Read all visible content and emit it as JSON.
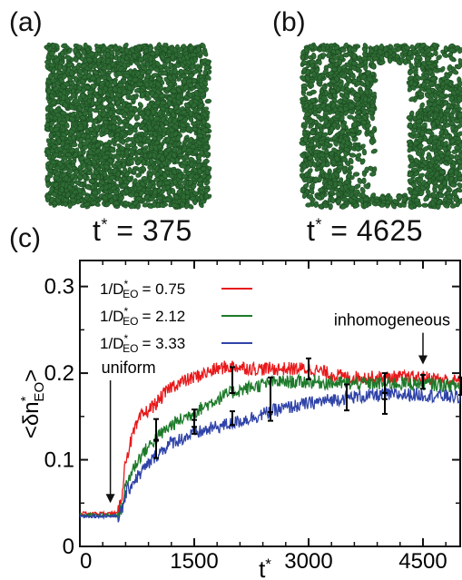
{
  "panels": {
    "a": {
      "label": "(a)",
      "time_prefix": "t",
      "time_value": "= 375"
    },
    "b": {
      "label": "(b)",
      "time_prefix": "t",
      "time_value": "= 4625"
    },
    "c": {
      "label": "(c)"
    }
  },
  "colors": {
    "particle": "#2e6b34",
    "particle_edge": "#1b4a20"
  },
  "chart_data": {
    "type": "line",
    "xlabel": "t*",
    "ylabel": "<δn*EO>",
    "xlim": [
      0,
      5000
    ],
    "ylim": [
      0,
      0.33
    ],
    "xticks": [
      0,
      1500,
      3000,
      4500
    ],
    "yticks": [
      0,
      0.1,
      0.2,
      0.3
    ],
    "xtick_labels": [
      "0",
      "1500",
      "3000",
      "4500"
    ],
    "ytick_labels": [
      "0",
      "0.1",
      "0.2",
      "0.3"
    ],
    "grid": false,
    "legend_position": "top-left",
    "legend_prefix": "1/D*EO",
    "series": [
      {
        "name": "1/D*EO = 0.75",
        "label_value": "= 0.75",
        "color": "#e8191b",
        "x": [
          0,
          500,
          550,
          600,
          700,
          800,
          1000,
          1200,
          1500,
          1800,
          2000,
          2300,
          2600,
          3000,
          3500,
          4000,
          4500,
          5000
        ],
        "y": [
          0.038,
          0.038,
          0.06,
          0.1,
          0.13,
          0.15,
          0.165,
          0.185,
          0.195,
          0.205,
          0.208,
          0.205,
          0.205,
          0.205,
          0.195,
          0.195,
          0.195,
          0.19
        ]
      },
      {
        "name": "1/D*EO = 2.12",
        "label_value": "= 2.12",
        "color": "#1d7a2a",
        "x": [
          0,
          500,
          550,
          600,
          700,
          800,
          1000,
          1200,
          1500,
          1800,
          2000,
          2300,
          2600,
          3000,
          3500,
          4000,
          4500,
          5000
        ],
        "y": [
          0.036,
          0.036,
          0.045,
          0.07,
          0.09,
          0.105,
          0.125,
          0.14,
          0.155,
          0.17,
          0.178,
          0.185,
          0.19,
          0.19,
          0.188,
          0.188,
          0.188,
          0.185
        ]
      },
      {
        "name": "1/D*EO = 3.33",
        "label_value": "= 3.33",
        "color": "#2f43a8",
        "x": [
          0,
          500,
          550,
          600,
          700,
          800,
          1000,
          1200,
          1500,
          1800,
          2000,
          2300,
          2600,
          3000,
          3500,
          4000,
          4500,
          5000
        ],
        "y": [
          0.035,
          0.035,
          0.04,
          0.06,
          0.075,
          0.085,
          0.105,
          0.12,
          0.13,
          0.138,
          0.142,
          0.15,
          0.158,
          0.165,
          0.172,
          0.175,
          0.175,
          0.172
        ]
      }
    ],
    "errorbars": [
      {
        "x": 1000,
        "y": 0.135,
        "err": 0.012
      },
      {
        "x": 1000,
        "y": 0.112,
        "err": 0.01
      },
      {
        "x": 1500,
        "y": 0.148,
        "err": 0.01
      },
      {
        "x": 1500,
        "y": 0.138,
        "err": 0.008
      },
      {
        "x": 2000,
        "y": 0.192,
        "err": 0.015
      },
      {
        "x": 2000,
        "y": 0.148,
        "err": 0.008
      },
      {
        "x": 2500,
        "y": 0.175,
        "err": 0.02
      },
      {
        "x": 2500,
        "y": 0.15,
        "err": 0.005
      },
      {
        "x": 3000,
        "y": 0.205,
        "err": 0.012
      },
      {
        "x": 3500,
        "y": 0.172,
        "err": 0.015
      },
      {
        "x": 4000,
        "y": 0.185,
        "err": 0.015
      },
      {
        "x": 4000,
        "y": 0.165,
        "err": 0.012
      },
      {
        "x": 4500,
        "y": 0.19,
        "err": 0.008
      },
      {
        "x": 5000,
        "y": 0.185,
        "err": 0.01
      }
    ],
    "annotations": [
      {
        "text": "uniform",
        "x": 400,
        "y": 0.2,
        "arrow_to": [
          400,
          0.05
        ]
      },
      {
        "text": "inhomogeneous",
        "x": 4500,
        "y": 0.255,
        "arrow_to": [
          4500,
          0.21
        ]
      }
    ]
  }
}
